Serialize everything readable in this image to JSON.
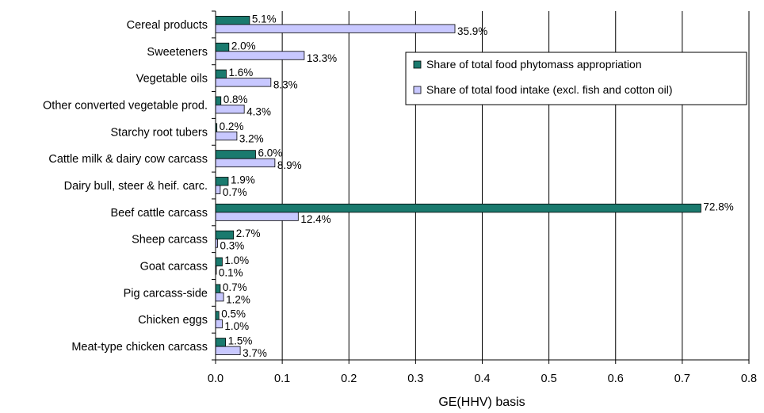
{
  "chart_data": {
    "type": "bar",
    "orientation": "horizontal",
    "xlabel": "GE(HHV) basis",
    "ylabel": "",
    "xlim": [
      0,
      0.8
    ],
    "xticks": [
      0.0,
      0.1,
      0.2,
      0.3,
      0.4,
      0.5,
      0.6,
      0.7,
      0.8
    ],
    "xtick_labels": [
      "0.0",
      "0.1",
      "0.2",
      "0.3",
      "0.4",
      "0.5",
      "0.6",
      "0.7",
      "0.8"
    ],
    "grid": "vertical",
    "legend_position": "top-right",
    "categories": [
      "Cereal products",
      "Sweeteners",
      "Vegetable oils",
      "Other converted vegetable prod.",
      "Starchy root tubers",
      "Cattle milk & dairy cow carcass",
      "Dairy bull, steer & heif. carc.",
      "Beef cattle carcass",
      "Sheep carcass",
      "Goat carcass",
      "Pig carcass-side",
      "Chicken eggs",
      "Meat-type chicken carcass"
    ],
    "series": [
      {
        "name": "Share of total food phytomass appropriation",
        "color": "#1a7a6e",
        "values": [
          0.051,
          0.02,
          0.016,
          0.008,
          0.002,
          0.06,
          0.019,
          0.728,
          0.027,
          0.01,
          0.007,
          0.005,
          0.015
        ],
        "labels": [
          "5.1%",
          "2.0%",
          "1.6%",
          "0.8%",
          "0.2%",
          "6.0%",
          "1.9%",
          "72.8%",
          "2.7%",
          "1.0%",
          "0.7%",
          "0.5%",
          "1.5%"
        ]
      },
      {
        "name": "Share of total food intake (excl. fish and cotton oil)",
        "color": "#c8c8ff",
        "values": [
          0.359,
          0.133,
          0.083,
          0.043,
          0.032,
          0.089,
          0.007,
          0.124,
          0.003,
          0.001,
          0.012,
          0.01,
          0.037
        ],
        "labels": [
          "35.9%",
          "13.3%",
          "8.3%",
          "4.3%",
          "3.2%",
          "8.9%",
          "0.7%",
          "12.4%",
          "0.3%",
          "0.1%",
          "1.2%",
          "1.0%",
          "3.7%"
        ]
      }
    ]
  }
}
